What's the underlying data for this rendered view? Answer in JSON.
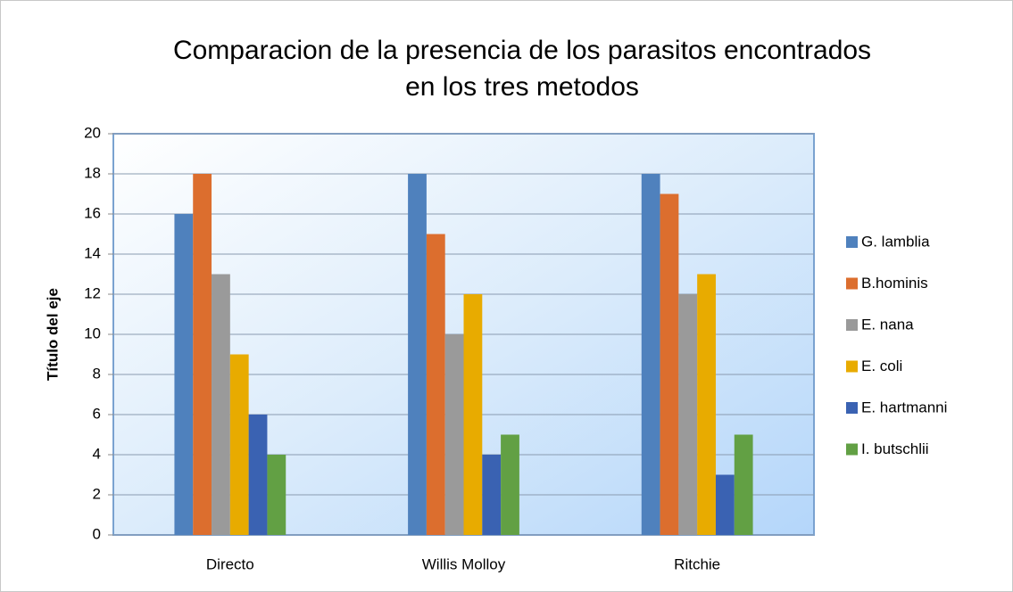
{
  "chart_data": {
    "type": "bar",
    "title": "Comparacion de la presencia de los parasitos encontrados en los tres metodos",
    "y_label": "Título del eje",
    "categories": [
      "Directo",
      "Willis Molloy",
      "Ritchie"
    ],
    "series": [
      {
        "name": "G. lamblia",
        "color": "#4f81bd",
        "values": [
          16,
          18,
          18
        ]
      },
      {
        "name": "B.hominis",
        "color": "#dc6e2e",
        "values": [
          18,
          15,
          17
        ]
      },
      {
        "name": "E. nana",
        "color": "#9a9a9a",
        "values": [
          13,
          10,
          12
        ]
      },
      {
        "name": "E. coli",
        "color": "#e8ab00",
        "values": [
          9,
          12,
          13
        ]
      },
      {
        "name": "E. hartmanni",
        "color": "#3a62b2",
        "values": [
          6,
          4,
          3
        ]
      },
      {
        "name": "I. butschlii",
        "color": "#62a044",
        "values": [
          4,
          5,
          5
        ]
      }
    ],
    "ylim": [
      0,
      20
    ],
    "yticks": [
      0,
      2,
      4,
      6,
      8,
      10,
      12,
      14,
      16,
      18,
      20
    ],
    "grid": true,
    "legend": "right"
  }
}
